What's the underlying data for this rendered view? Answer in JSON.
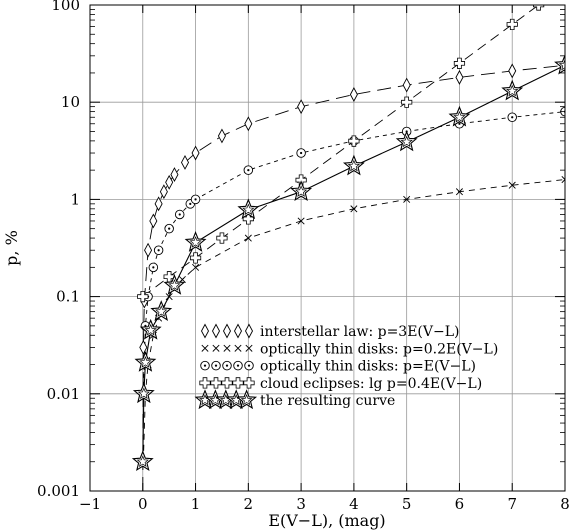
{
  "chart_data": {
    "type": "line",
    "title": "",
    "xlabel": "E(V−L), (mag)",
    "ylabel": "p, %",
    "xlim": [
      -1,
      8
    ],
    "ylim": [
      0.001,
      100
    ],
    "y_scale": "log",
    "grid": true,
    "x_ticks": [
      "−1",
      "0",
      "1",
      "2",
      "3",
      "4",
      "5",
      "6",
      "7",
      "8"
    ],
    "y_ticks": [
      "0.001",
      "0.01",
      "0.1",
      "1",
      "10",
      "100"
    ],
    "legend_position": "bottom-right",
    "series": [
      {
        "name": "interstellar law: p=3E(V−L)",
        "marker": "diamond",
        "line": "long-dash",
        "points": [
          [
            0.0,
            0.001
          ],
          [
            0.01,
            0.03
          ],
          [
            0.03,
            0.09
          ],
          [
            0.1,
            0.3
          ],
          [
            0.2,
            0.6
          ],
          [
            0.3,
            0.9
          ],
          [
            0.4,
            1.2
          ],
          [
            0.5,
            1.5
          ],
          [
            0.6,
            1.8
          ],
          [
            0.8,
            2.4
          ],
          [
            1.0,
            3.0
          ],
          [
            1.5,
            4.5
          ],
          [
            2.0,
            6.0
          ],
          [
            3.0,
            9.0
          ],
          [
            4.0,
            12.0
          ],
          [
            5.0,
            15.0
          ],
          [
            6.0,
            18.0
          ],
          [
            7.0,
            21.0
          ],
          [
            8.0,
            24.0
          ]
        ]
      },
      {
        "name": "optically thin disks: p=0.2E(V−L)",
        "marker": "cross",
        "line": "short-dash",
        "points": [
          [
            0.01,
            0.002
          ],
          [
            0.05,
            0.01
          ],
          [
            0.1,
            0.02
          ],
          [
            0.2,
            0.04
          ],
          [
            0.3,
            0.06
          ],
          [
            0.5,
            0.1
          ],
          [
            0.75,
            0.15
          ],
          [
            1.0,
            0.2
          ],
          [
            2.0,
            0.4
          ],
          [
            3.0,
            0.6
          ],
          [
            4.0,
            0.8
          ],
          [
            5.0,
            1.0
          ],
          [
            6.0,
            1.2
          ],
          [
            7.0,
            1.4
          ],
          [
            8.0,
            1.6
          ]
        ]
      },
      {
        "name": "optically thin disks: p=E(V−L)",
        "marker": "circle-dot",
        "line": "dotted-dash",
        "points": [
          [
            0.01,
            0.01
          ],
          [
            0.05,
            0.05
          ],
          [
            0.1,
            0.1
          ],
          [
            0.2,
            0.2
          ],
          [
            0.3,
            0.3
          ],
          [
            0.5,
            0.5
          ],
          [
            0.7,
            0.7
          ],
          [
            0.9,
            0.9
          ],
          [
            1.0,
            1.0
          ],
          [
            2.0,
            2.0
          ],
          [
            3.0,
            3.0
          ],
          [
            4.0,
            4.0
          ],
          [
            5.0,
            5.0
          ],
          [
            6.0,
            6.0
          ],
          [
            7.0,
            7.0
          ],
          [
            8.0,
            8.0
          ]
        ]
      },
      {
        "name": "cloud eclipses: lg p=0.4E(V−L)",
        "marker": "plus-square",
        "line": "medium-dash",
        "points": [
          [
            0.0,
            0.1
          ],
          [
            0.5,
            0.16
          ],
          [
            1.0,
            0.25
          ],
          [
            1.5,
            0.4
          ],
          [
            2.0,
            0.63
          ],
          [
            3.0,
            1.58
          ],
          [
            4.0,
            3.98
          ],
          [
            5.0,
            10.0
          ],
          [
            6.0,
            25.1
          ],
          [
            7.0,
            63.1
          ],
          [
            7.5,
            100.0
          ]
        ]
      },
      {
        "name": "the resulting curve",
        "marker": "star",
        "line": "solid",
        "points": [
          [
            0.0,
            0.002
          ],
          [
            0.02,
            0.01
          ],
          [
            0.05,
            0.021
          ],
          [
            0.15,
            0.045
          ],
          [
            0.35,
            0.07
          ],
          [
            0.6,
            0.13
          ],
          [
            1.0,
            0.36
          ],
          [
            2.0,
            0.78
          ],
          [
            3.0,
            1.2
          ],
          [
            4.0,
            2.2
          ],
          [
            5.0,
            3.9
          ],
          [
            6.0,
            7.0
          ],
          [
            7.0,
            13.0
          ],
          [
            8.0,
            24.0
          ]
        ]
      }
    ]
  }
}
